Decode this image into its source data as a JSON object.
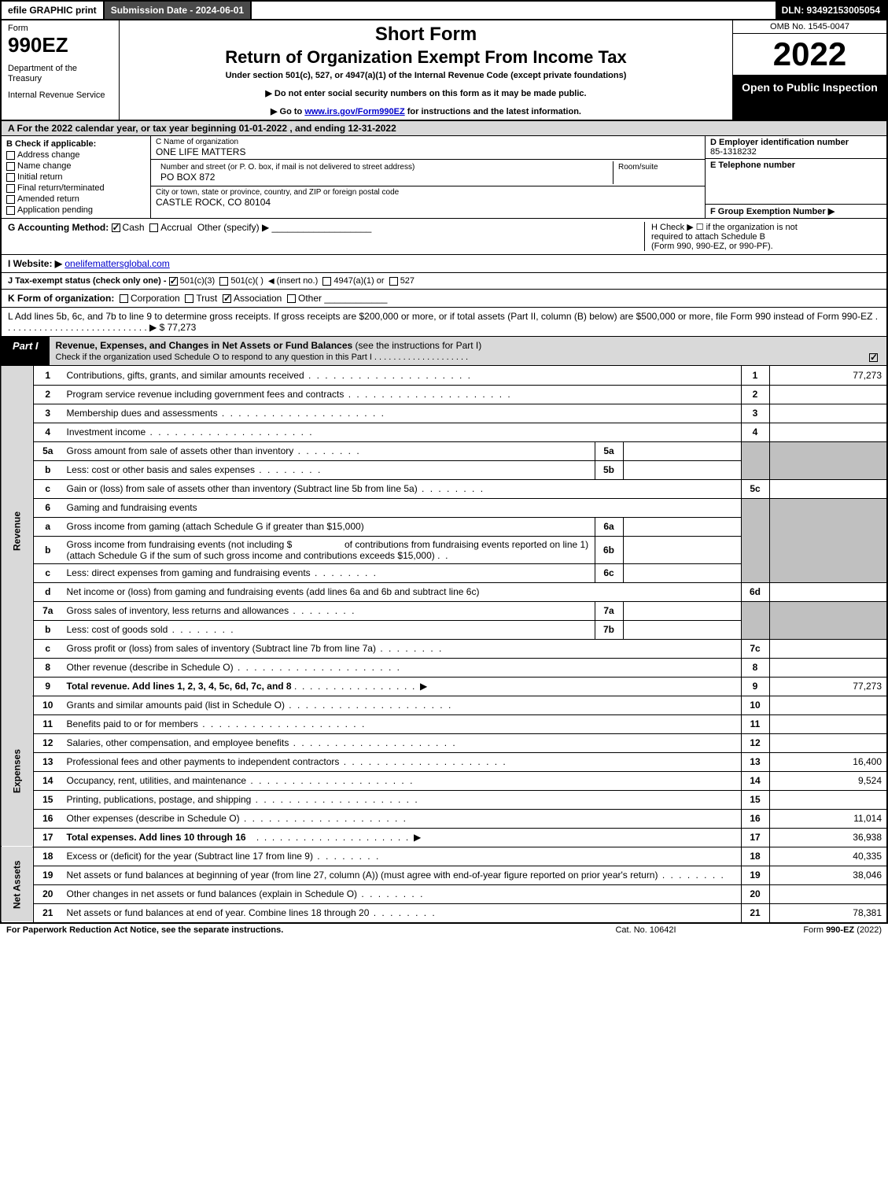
{
  "topbar": {
    "efile": "efile GRAPHIC print",
    "submission": "Submission Date - 2024-06-01",
    "dln": "DLN: 93492153005054"
  },
  "header": {
    "form_label": "Form",
    "form_number": "990EZ",
    "dept1": "Department of the Treasury",
    "dept2": "Internal Revenue Service",
    "short_form": "Short Form",
    "return_title": "Return of Organization Exempt From Income Tax",
    "subtitle": "Under section 501(c), 527, or 4947(a)(1) of the Internal Revenue Code (except private foundations)",
    "instr1": "▶ Do not enter social security numbers on this form as it may be made public.",
    "instr2_pre": "▶ Go to ",
    "instr2_link": "www.irs.gov/Form990EZ",
    "instr2_post": " for instructions and the latest information.",
    "omb": "OMB No. 1545-0047",
    "tax_year": "2022",
    "open_public": "Open to Public Inspection"
  },
  "section_a": "A  For the 2022 calendar year, or tax year beginning 01-01-2022 , and ending 12-31-2022",
  "b": {
    "header": "B  Check if applicable:",
    "opts": [
      "Address change",
      "Name change",
      "Initial return",
      "Final return/terminated",
      "Amended return",
      "Application pending"
    ]
  },
  "c": {
    "name_label": "C Name of organization",
    "name": "ONE LIFE MATTERS",
    "street_label": "Number and street (or P. O. box, if mail is not delivered to street address)",
    "street": "PO BOX 872",
    "room_label": "Room/suite",
    "city_label": "City or town, state or province, country, and ZIP or foreign postal code",
    "city": "CASTLE ROCK, CO  80104"
  },
  "d": {
    "label": "D Employer identification number",
    "value": "85-1318232"
  },
  "e": {
    "label": "E Telephone number",
    "value": ""
  },
  "f": {
    "label": "F Group Exemption Number  ▶",
    "value": ""
  },
  "g": {
    "label": "G Accounting Method:",
    "cash": "Cash",
    "accrual": "Accrual",
    "other": "Other (specify) ▶"
  },
  "h": {
    "line1": "H  Check ▶  ☐  if the organization is not",
    "line2": "required to attach Schedule B",
    "line3": "(Form 990, 990-EZ, or 990-PF)."
  },
  "i": {
    "label": "I Website: ▶",
    "value": "onelifemattersglobal.com"
  },
  "j": {
    "label": "J Tax-exempt status (check only one) - ",
    "opt1": "501(c)(3)",
    "opt2": "501(c)(  )",
    "opt2_insert": "(insert no.)",
    "opt3": "4947(a)(1) or",
    "opt4": "527"
  },
  "k": {
    "label": "K Form of organization:",
    "opts": [
      "Corporation",
      "Trust",
      "Association",
      "Other"
    ]
  },
  "l": {
    "text": "L Add lines 5b, 6c, and 7b to line 9 to determine gross receipts. If gross receipts are $200,000 or more, or if total assets (Part II, column (B) below) are $500,000 or more, file Form 990 instead of Form 990-EZ  .  .  .  .  .  .  .  .  .  .  .  .  .  .  .  .  .  .  .  .  .  .  .  .  .  .  .  .  ▶ $ ",
    "value": "77,273"
  },
  "part1": {
    "tab": "Part I",
    "title": "Revenue, Expenses, and Changes in Net Assets or Fund Balances",
    "title_paren": "(see the instructions for Part I)",
    "sub": "Check if the organization used Schedule O to respond to any question in this Part I  .  .  .  .  .  .  .  .  .  .  .  .  .  .  .  .  .  .  .  ."
  },
  "side": {
    "revenue": "Revenue",
    "expenses": "Expenses",
    "netassets": "Net Assets"
  },
  "lines": {
    "l1": "Contributions, gifts, grants, and similar amounts received",
    "l2": "Program service revenue including government fees and contracts",
    "l3": "Membership dues and assessments",
    "l4": "Investment income",
    "l5a": "Gross amount from sale of assets other than inventory",
    "l5b": "Less: cost or other basis and sales expenses",
    "l5c": "Gain or (loss) from sale of assets other than inventory (Subtract line 5b from line 5a)",
    "l6": "Gaming and fundraising events",
    "l6a": "Gross income from gaming (attach Schedule G if greater than $15,000)",
    "l6b_pre": "Gross income from fundraising events (not including $",
    "l6b_mid": "of contributions from fundraising events reported on line 1) (attach Schedule G if the sum of such gross income and contributions exceeds $15,000)",
    "l6c": "Less: direct expenses from gaming and fundraising events",
    "l6d": "Net income or (loss) from gaming and fundraising events (add lines 6a and 6b and subtract line 6c)",
    "l7a": "Gross sales of inventory, less returns and allowances",
    "l7b": "Less: cost of goods sold",
    "l7c": "Gross profit or (loss) from sales of inventory (Subtract line 7b from line 7a)",
    "l8": "Other revenue (describe in Schedule O)",
    "l9": "Total revenue. Add lines 1, 2, 3, 4, 5c, 6d, 7c, and 8",
    "l10": "Grants and similar amounts paid (list in Schedule O)",
    "l11": "Benefits paid to or for members",
    "l12": "Salaries, other compensation, and employee benefits",
    "l13": "Professional fees and other payments to independent contractors",
    "l14": "Occupancy, rent, utilities, and maintenance",
    "l15": "Printing, publications, postage, and shipping",
    "l16": "Other expenses (describe in Schedule O)",
    "l17": "Total expenses. Add lines 10 through 16",
    "l18": "Excess or (deficit) for the year (Subtract line 17 from line 9)",
    "l19": "Net assets or fund balances at beginning of year (from line 27, column (A)) (must agree with end-of-year figure reported on prior year's return)",
    "l20": "Other changes in net assets or fund balances (explain in Schedule O)",
    "l21": "Net assets or fund balances at end of year. Combine lines 18 through 20"
  },
  "amounts": {
    "l1": "77,273",
    "l9": "77,273",
    "l13": "16,400",
    "l14": "9,524",
    "l16": "11,014",
    "l17": "36,938",
    "l18": "40,335",
    "l19": "38,046",
    "l21": "78,381"
  },
  "footer": {
    "left": "For Paperwork Reduction Act Notice, see the separate instructions.",
    "center": "Cat. No. 10642I",
    "right_pre": "Form ",
    "right_bold": "990-EZ",
    "right_post": " (2022)"
  }
}
